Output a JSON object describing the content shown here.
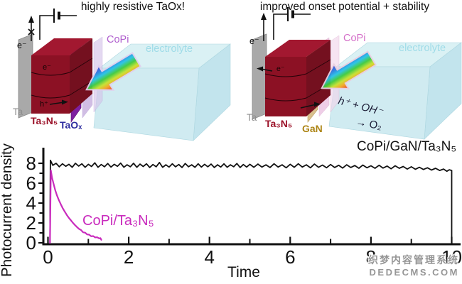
{
  "panels": {
    "left": {
      "title": "highly resistive TaOx!",
      "labels": {
        "electron": "e⁻",
        "copi": "CoPi",
        "electrolyte": "electrolyte",
        "ta": "Ta",
        "ta3n5": "Ta₃N₅",
        "layer": "TaOₓ",
        "cube_electron": "e⁻",
        "cube_hole": "h⁺"
      }
    },
    "right": {
      "title": "improved onset potential + stability",
      "labels": {
        "electron": "e⁻",
        "copi": "CoPi",
        "electrolyte": "electrolyte",
        "ta": "Ta",
        "ta3n5": "Ta₃N₅",
        "layer": "GaN",
        "cube_electron": "e⁻",
        "reaction1": "h⁺ + OH⁻",
        "reaction2": "→ O₂"
      }
    }
  },
  "colors": {
    "copi_label_left": "#b05fce",
    "copi_label_right": "#d46ec8",
    "electrolyte_label": "#9fdce8",
    "ta_label": "#8f8f8f",
    "ta3n5_label": "#9b1128",
    "taox_label": "#2d2d9f",
    "gan_label": "#ad8516",
    "reaction_text": "#1b1b35"
  },
  "watermark": {
    "line1": "织梦内容管理系统",
    "line2": "DEDECMS.COM"
  },
  "chart_data": {
    "type": "line",
    "title": "",
    "xlabel": "Time",
    "ylabel": "Photocurrent density",
    "xlim": [
      0,
      10.3
    ],
    "ylim": [
      0,
      8.8
    ],
    "grid": false,
    "legend_position": "inline-labels",
    "x_ticks": [
      0,
      2,
      4,
      6,
      8,
      10
    ],
    "x_minor_ticks": [
      1,
      3,
      5,
      7,
      9
    ],
    "y_ticks": [
      0,
      2,
      4,
      6,
      8
    ],
    "y_minor_ticks": [
      1,
      3,
      5,
      7
    ],
    "series": [
      {
        "name": "CoPi/GaN/Ta₃N₅",
        "color": "#111111",
        "stroke_width": 1.8,
        "points": [
          [
            0.05,
            0
          ],
          [
            0.06,
            8.3
          ],
          [
            0.12,
            7.8
          ],
          [
            0.2,
            8.0
          ],
          [
            0.28,
            7.65
          ],
          [
            0.36,
            7.95
          ],
          [
            0.44,
            7.7
          ],
          [
            0.52,
            7.9
          ],
          [
            0.6,
            7.6
          ],
          [
            0.68,
            8.0
          ],
          [
            0.76,
            7.72
          ],
          [
            0.84,
            7.95
          ],
          [
            0.92,
            7.6
          ],
          [
            1.0,
            7.9
          ],
          [
            1.08,
            7.68
          ],
          [
            1.16,
            8.05
          ],
          [
            1.24,
            7.6
          ],
          [
            1.32,
            7.88
          ],
          [
            1.4,
            7.65
          ],
          [
            1.48,
            7.98
          ],
          [
            1.56,
            7.62
          ],
          [
            1.64,
            7.9
          ],
          [
            1.72,
            7.7
          ],
          [
            1.8,
            8.02
          ],
          [
            1.88,
            7.6
          ],
          [
            1.96,
            7.85
          ],
          [
            2.04,
            7.65
          ],
          [
            2.12,
            8.0
          ],
          [
            2.2,
            7.6
          ],
          [
            2.28,
            7.92
          ],
          [
            2.36,
            7.68
          ],
          [
            2.44,
            7.95
          ],
          [
            2.52,
            7.58
          ],
          [
            2.6,
            7.88
          ],
          [
            2.68,
            7.65
          ],
          [
            2.76,
            8.08
          ],
          [
            2.84,
            7.6
          ],
          [
            2.92,
            7.85
          ],
          [
            3.0,
            7.62
          ],
          [
            3.08,
            7.95
          ],
          [
            3.16,
            7.65
          ],
          [
            3.24,
            7.88
          ],
          [
            3.32,
            7.58
          ],
          [
            3.4,
            7.98
          ],
          [
            3.48,
            7.65
          ],
          [
            3.56,
            7.85
          ],
          [
            3.64,
            7.6
          ],
          [
            3.72,
            7.95
          ],
          [
            3.8,
            7.62
          ],
          [
            3.88,
            7.9
          ],
          [
            3.96,
            7.65
          ],
          [
            4.04,
            7.92
          ],
          [
            4.12,
            7.58
          ],
          [
            4.2,
            7.85
          ],
          [
            4.28,
            7.62
          ],
          [
            4.36,
            7.95
          ],
          [
            4.44,
            7.6
          ],
          [
            4.52,
            7.85
          ],
          [
            4.6,
            7.65
          ],
          [
            4.68,
            7.98
          ],
          [
            4.76,
            7.58
          ],
          [
            4.84,
            7.88
          ],
          [
            4.92,
            7.62
          ],
          [
            5.0,
            7.9
          ],
          [
            5.1,
            7.6
          ],
          [
            5.2,
            7.92
          ],
          [
            5.3,
            7.62
          ],
          [
            5.4,
            7.85
          ],
          [
            5.5,
            7.58
          ],
          [
            5.6,
            7.95
          ],
          [
            5.7,
            7.62
          ],
          [
            5.8,
            7.85
          ],
          [
            5.9,
            7.55
          ],
          [
            6.0,
            7.9
          ],
          [
            6.1,
            7.6
          ],
          [
            6.2,
            7.95
          ],
          [
            6.3,
            7.62
          ],
          [
            6.4,
            7.85
          ],
          [
            6.5,
            7.55
          ],
          [
            6.6,
            7.92
          ],
          [
            6.7,
            7.6
          ],
          [
            6.8,
            7.82
          ],
          [
            6.9,
            7.55
          ],
          [
            7.0,
            7.88
          ],
          [
            7.1,
            7.58
          ],
          [
            7.2,
            7.8
          ],
          [
            7.3,
            7.52
          ],
          [
            7.4,
            7.85
          ],
          [
            7.5,
            7.58
          ],
          [
            7.6,
            7.78
          ],
          [
            7.7,
            7.5
          ],
          [
            7.8,
            7.82
          ],
          [
            7.9,
            7.55
          ],
          [
            8.0,
            7.75
          ],
          [
            8.1,
            7.5
          ],
          [
            8.2,
            7.8
          ],
          [
            8.3,
            7.52
          ],
          [
            8.4,
            7.72
          ],
          [
            8.5,
            7.45
          ],
          [
            8.6,
            7.75
          ],
          [
            8.7,
            7.5
          ],
          [
            8.8,
            7.68
          ],
          [
            8.9,
            7.42
          ],
          [
            9.0,
            7.65
          ],
          [
            9.1,
            7.4
          ],
          [
            9.2,
            7.6
          ],
          [
            9.3,
            7.38
          ],
          [
            9.4,
            7.55
          ],
          [
            9.5,
            7.32
          ],
          [
            9.6,
            7.5
          ],
          [
            9.7,
            7.28
          ],
          [
            9.8,
            7.42
          ],
          [
            9.88,
            7.2
          ],
          [
            9.94,
            7.35
          ],
          [
            10.0,
            7.28
          ],
          [
            10.0,
            0
          ]
        ]
      },
      {
        "name": "CoPi/Ta₃N₅",
        "color": "#c92bbd",
        "stroke_width": 2.2,
        "points": [
          [
            0.05,
            0
          ],
          [
            0.07,
            7.3
          ],
          [
            0.1,
            6.55
          ],
          [
            0.14,
            5.9
          ],
          [
            0.18,
            5.3
          ],
          [
            0.22,
            4.8
          ],
          [
            0.27,
            4.3
          ],
          [
            0.32,
            3.85
          ],
          [
            0.37,
            3.45
          ],
          [
            0.42,
            3.1
          ],
          [
            0.47,
            2.78
          ],
          [
            0.52,
            2.5
          ],
          [
            0.57,
            2.25
          ],
          [
            0.62,
            2.0
          ],
          [
            0.67,
            1.78
          ],
          [
            0.72,
            1.58
          ],
          [
            0.77,
            1.4
          ],
          [
            0.82,
            1.28
          ],
          [
            0.87,
            1.06
          ],
          [
            0.92,
            1.02
          ],
          [
            0.97,
            0.84
          ],
          [
            1.02,
            0.82
          ],
          [
            1.07,
            0.66
          ],
          [
            1.12,
            0.68
          ],
          [
            1.17,
            0.54
          ],
          [
            1.22,
            0.56
          ],
          [
            1.27,
            0.44
          ],
          [
            1.3,
            0.47
          ],
          [
            1.32,
            0.3
          ]
        ]
      }
    ]
  }
}
